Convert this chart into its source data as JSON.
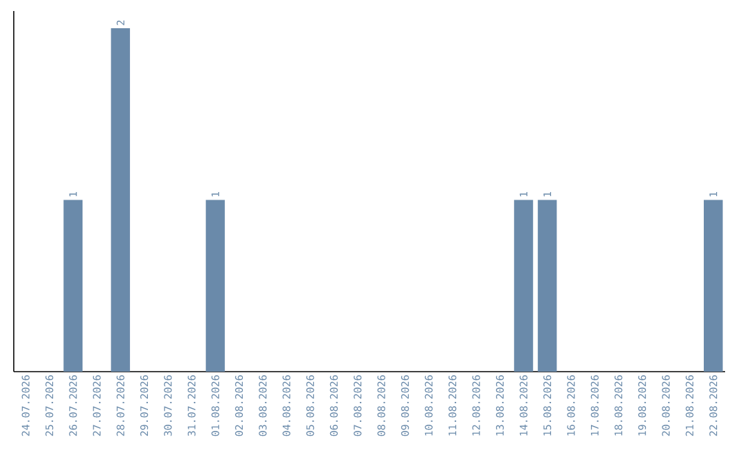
{
  "chart_data": {
    "type": "bar",
    "categories": [
      "24.07.2026",
      "25.07.2026",
      "26.07.2026",
      "27.07.2026",
      "28.07.2026",
      "29.07.2026",
      "30.07.2026",
      "31.07.2026",
      "01.08.2026",
      "02.08.2026",
      "03.08.2026",
      "04.08.2026",
      "05.08.2026",
      "06.08.2026",
      "07.08.2026",
      "08.08.2026",
      "09.08.2026",
      "10.08.2026",
      "11.08.2026",
      "12.08.2026",
      "13.08.2026",
      "14.08.2026",
      "15.08.2026",
      "16.08.2026",
      "17.08.2026",
      "18.08.2026",
      "19.08.2026",
      "20.08.2026",
      "21.08.2026",
      "22.08.2026"
    ],
    "values": [
      0,
      0,
      1,
      0,
      2,
      0,
      0,
      0,
      1,
      0,
      0,
      0,
      0,
      0,
      0,
      0,
      0,
      0,
      0,
      0,
      0,
      1,
      1,
      0,
      0,
      0,
      0,
      0,
      0,
      1
    ],
    "value_labels": [
      null,
      null,
      "1",
      null,
      "2",
      null,
      null,
      null,
      "1",
      null,
      null,
      null,
      null,
      null,
      null,
      null,
      null,
      null,
      null,
      null,
      null,
      "1",
      "1",
      null,
      null,
      null,
      null,
      null,
      null,
      "1"
    ],
    "color": "#6a8aaa",
    "ylim": [
      0,
      2.1
    ],
    "tick_labels": "x"
  }
}
